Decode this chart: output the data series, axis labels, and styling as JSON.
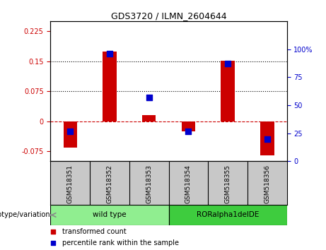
{
  "title": "GDS3720 / ILMN_2604644",
  "samples": [
    "GSM518351",
    "GSM518352",
    "GSM518353",
    "GSM518354",
    "GSM518355",
    "GSM518356"
  ],
  "transformed_count": [
    -0.065,
    0.175,
    0.015,
    -0.025,
    0.152,
    -0.085
  ],
  "percentile_rank": [
    27,
    96,
    57,
    27,
    87,
    20
  ],
  "groups": [
    {
      "label": "wild type",
      "indices": [
        0,
        1,
        2
      ],
      "color": "#90EE90"
    },
    {
      "label": "RORalpha1delDE",
      "indices": [
        3,
        4,
        5
      ],
      "color": "#3ECC3E"
    }
  ],
  "genotype_label": "genotype/variation",
  "left_ylim": [
    -0.1,
    0.25
  ],
  "left_yticks": [
    -0.075,
    0,
    0.075,
    0.15,
    0.225
  ],
  "left_yticklabels": [
    "-0.075",
    "0",
    "0.075",
    "0.15",
    "0.225"
  ],
  "right_ylim": [
    0,
    125
  ],
  "right_yticks": [
    0,
    25,
    50,
    75,
    100
  ],
  "right_yticklabels": [
    "0",
    "25",
    "50",
    "75",
    "100%"
  ],
  "hlines": [
    0.075,
    0.15
  ],
  "bar_color": "#CC0000",
  "dot_color": "#0000CC",
  "zero_line_color": "#CC0000",
  "legend_bar_label": "transformed count",
  "legend_dot_label": "percentile rank within the sample",
  "bar_width": 0.35,
  "dot_size": 40,
  "background_color": "#ffffff",
  "plot_bg_color": "#ffffff",
  "tick_label_color_left": "#CC0000",
  "tick_label_color_right": "#0000CC",
  "grid_color": "#000000",
  "sample_bg_color": "#c8c8c8"
}
